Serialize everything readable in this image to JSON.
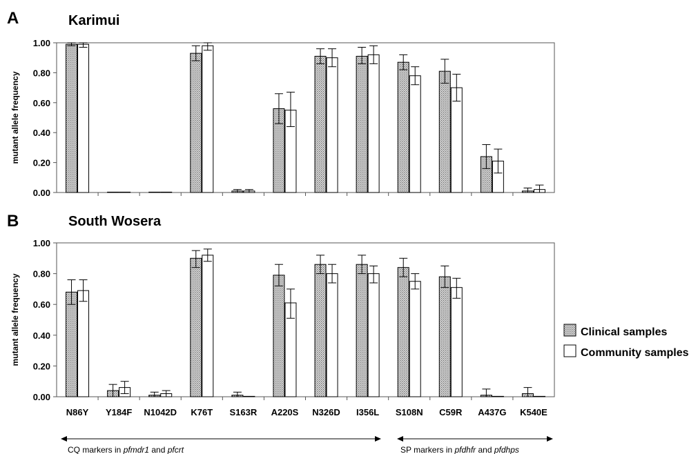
{
  "chart_data": [
    {
      "type": "bar",
      "panel_letter": "A",
      "title": "Karimui",
      "ylabel": "mutant allele frequency",
      "ylim": [
        0,
        1
      ],
      "yticks": [
        "0.00",
        "0.20",
        "0.40",
        "0.60",
        "0.80",
        "1.00"
      ],
      "categories": [
        "N86Y",
        "Y184F",
        "N1042D",
        "K76T",
        "S163R",
        "A220S",
        "N326D",
        "I356L",
        "S108N",
        "C59R",
        "A437G",
        "K540E"
      ],
      "series": [
        {
          "name": "Clinical samples",
          "values": [
            0.99,
            0.0,
            0.0,
            0.93,
            0.01,
            0.56,
            0.91,
            0.91,
            0.87,
            0.81,
            0.24,
            0.01
          ],
          "err_low": [
            0.98,
            0.0,
            0.0,
            0.88,
            0.0,
            0.46,
            0.86,
            0.86,
            0.82,
            0.73,
            0.16,
            0.0
          ],
          "err_high": [
            1.0,
            0.0,
            0.0,
            0.98,
            0.02,
            0.66,
            0.96,
            0.97,
            0.92,
            0.89,
            0.32,
            0.03
          ]
        },
        {
          "name": "Community samples",
          "values": [
            0.99,
            0.0,
            0.0,
            0.98,
            0.01,
            0.55,
            0.9,
            0.92,
            0.78,
            0.7,
            0.21,
            0.02
          ],
          "err_low": [
            0.97,
            0.0,
            0.0,
            0.95,
            0.0,
            0.44,
            0.84,
            0.86,
            0.72,
            0.61,
            0.13,
            0.0
          ],
          "err_high": [
            1.0,
            0.0,
            0.0,
            1.0,
            0.02,
            0.67,
            0.96,
            0.98,
            0.84,
            0.79,
            0.29,
            0.05
          ]
        }
      ]
    },
    {
      "type": "bar",
      "panel_letter": "B",
      "title": "South Wosera",
      "ylabel": "mutant allele frequency",
      "ylim": [
        0,
        1
      ],
      "yticks": [
        "0.00",
        "0.20",
        "0.40",
        "0.60",
        "0.80",
        "1.00"
      ],
      "categories": [
        "N86Y",
        "Y184F",
        "N1042D",
        "K76T",
        "S163R",
        "A220S",
        "N326D",
        "I356L",
        "S108N",
        "C59R",
        "A437G",
        "K540E"
      ],
      "series": [
        {
          "name": "Clinical samples",
          "values": [
            0.68,
            0.04,
            0.01,
            0.9,
            0.01,
            0.79,
            0.86,
            0.86,
            0.84,
            0.78,
            0.01,
            0.02
          ],
          "err_low": [
            0.6,
            0.0,
            0.0,
            0.84,
            0.0,
            0.72,
            0.8,
            0.8,
            0.78,
            0.71,
            0.0,
            0.0
          ],
          "err_high": [
            0.76,
            0.08,
            0.03,
            0.95,
            0.03,
            0.86,
            0.92,
            0.92,
            0.9,
            0.85,
            0.05,
            0.06
          ]
        },
        {
          "name": "Community samples",
          "values": [
            0.69,
            0.06,
            0.02,
            0.92,
            0.0,
            0.61,
            0.8,
            0.8,
            0.75,
            0.71,
            0.0,
            0.0
          ],
          "err_low": [
            0.62,
            0.02,
            0.0,
            0.88,
            0.0,
            0.51,
            0.74,
            0.74,
            0.7,
            0.64,
            0.0,
            0.0
          ],
          "err_high": [
            0.76,
            0.1,
            0.04,
            0.96,
            0.0,
            0.7,
            0.86,
            0.85,
            0.8,
            0.77,
            0.0,
            0.0
          ]
        }
      ]
    }
  ],
  "legend": {
    "items": [
      {
        "label": "Clinical samples",
        "pattern": "dotted-gray"
      },
      {
        "label": "Community samples",
        "pattern": "white"
      }
    ]
  },
  "groups": [
    {
      "prefix": "CQ markers in ",
      "gene1": "pfmdr1",
      "and": " and ",
      "gene2": "pfcrt"
    },
    {
      "prefix": "SP markers in ",
      "gene1": "pfdhfr",
      "and": " and ",
      "gene2": "pfdhps"
    }
  ],
  "colors": {
    "axis": "#555555",
    "bar_stroke": "#000000",
    "clinical_fill": "#bdbdbd",
    "community_fill": "#ffffff"
  }
}
